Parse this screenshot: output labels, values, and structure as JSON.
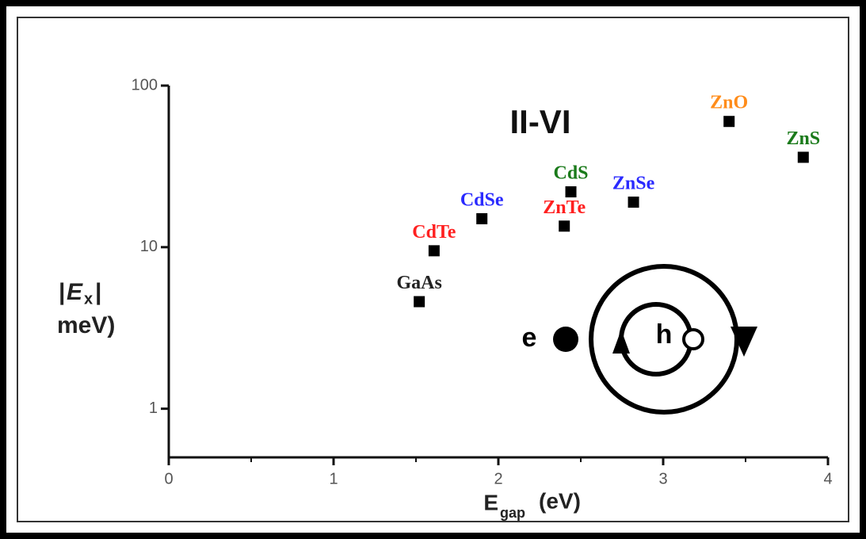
{
  "chart_data": {
    "type": "scatter",
    "annotation": "II-VI",
    "diagram_labels": {
      "electron": "e",
      "hole": "h"
    },
    "xlabel": {
      "main": "E",
      "sub": "gap",
      "unit": "(eV)"
    },
    "ylabel": {
      "open": "|",
      "main": "E",
      "sub": "x",
      "close": "|",
      "line2": "meV)"
    },
    "x": [
      1.52,
      1.61,
      1.9,
      2.44,
      2.4,
      2.82,
      3.4,
      3.85
    ],
    "values": [
      4.6,
      9.5,
      15,
      22,
      13.5,
      19,
      60,
      36
    ],
    "labels": [
      "GaAs",
      "CdTe",
      "CdSe",
      "CdS",
      "ZnTe",
      "ZnSe",
      "ZnO",
      "ZnS"
    ],
    "label_colors": [
      "#222222",
      "#ff2020",
      "#2a2aff",
      "#1a7a1a",
      "#ff2020",
      "#2a2aff",
      "#ff8c1a",
      "#1a7a1a"
    ],
    "color": "#000000",
    "xlim": [
      0,
      4
    ],
    "xticks": [
      0,
      1,
      2,
      3,
      4
    ],
    "ylim": [
      0.5,
      100
    ],
    "yticks": [
      1,
      10,
      100
    ],
    "log_y": true
  }
}
